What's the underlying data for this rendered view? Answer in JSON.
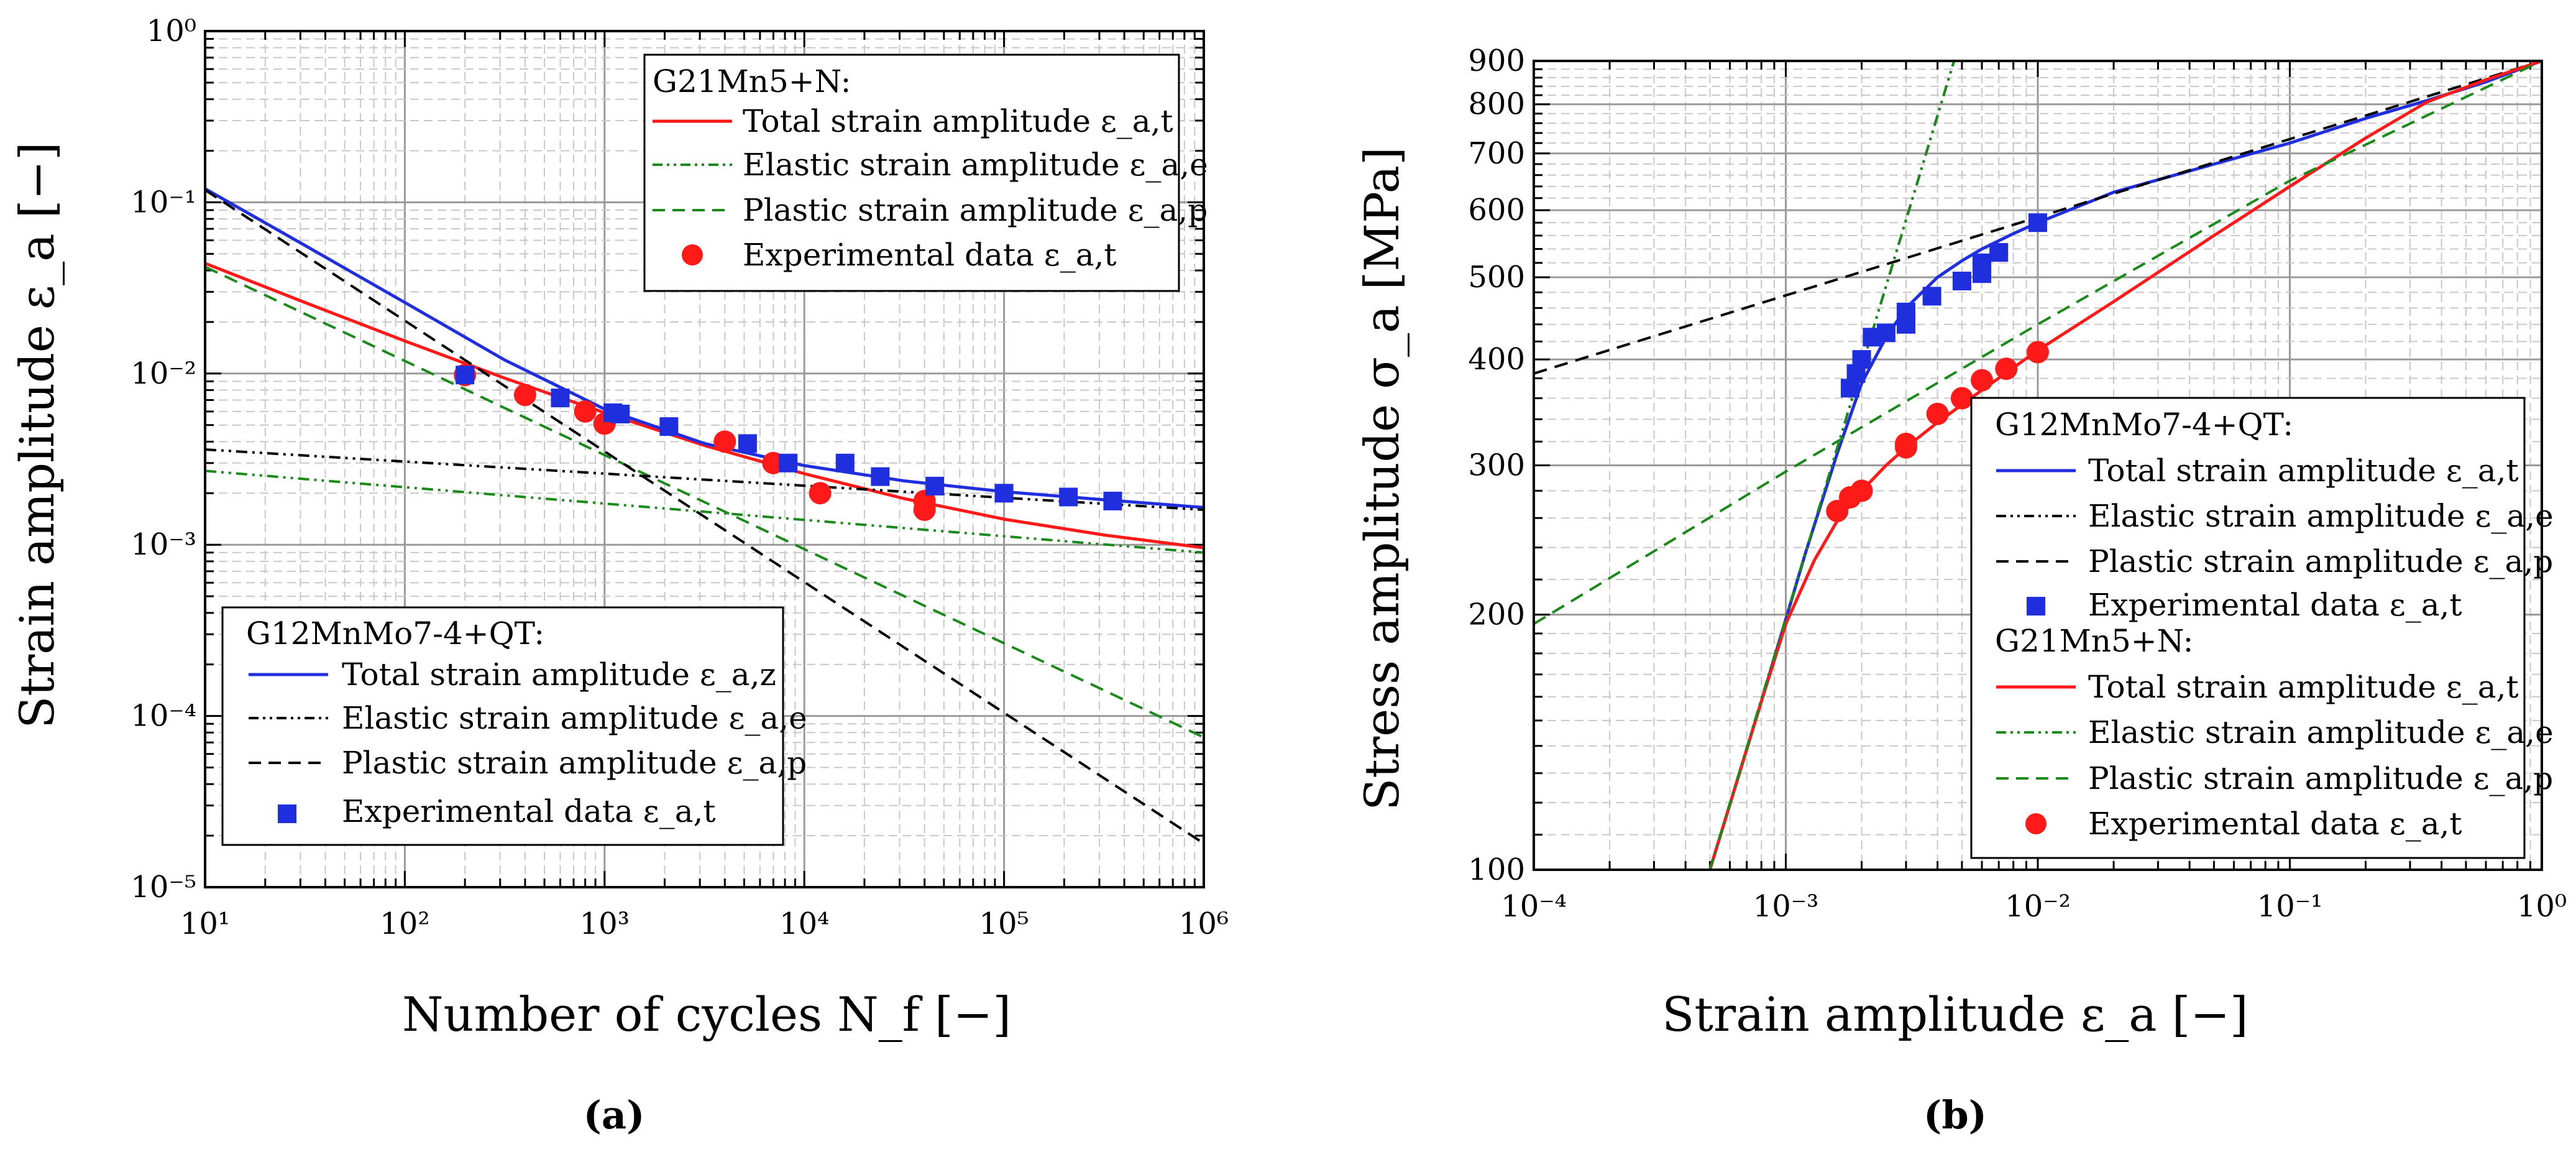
{
  "colors": {
    "red": "#ff1a1a",
    "blue": "#1f2fdd",
    "green": "#1a8a1a",
    "black": "#000000",
    "grid_major": "#9a9a9a",
    "grid_minor": "#c8c8c8"
  },
  "chart_data": [
    {
      "id": "a",
      "type": "line",
      "panel_label": "(a)",
      "xlabel": "Number of cycles N_f [−]",
      "ylabel": "Strain amplitude ε_a [−]",
      "xscale": "log",
      "yscale": "log",
      "xlim": [
        10,
        1000000
      ],
      "ylim": [
        1e-05,
        1
      ],
      "xticks": [
        {
          "value": 10,
          "label": "10¹"
        },
        {
          "value": 100,
          "label": "10²"
        },
        {
          "value": 1000,
          "label": "10³"
        },
        {
          "value": 10000,
          "label": "10⁴"
        },
        {
          "value": 100000,
          "label": "10⁵"
        },
        {
          "value": 1000000,
          "label": "10⁶"
        }
      ],
      "yticks": [
        {
          "value": 1e-05,
          "label": "10⁻⁵"
        },
        {
          "value": 0.0001,
          "label": "10⁻⁴"
        },
        {
          "value": 0.001,
          "label": "10⁻³"
        },
        {
          "value": 0.01,
          "label": "10⁻²"
        },
        {
          "value": 0.1,
          "label": "10⁻¹"
        },
        {
          "value": 1,
          "label": "10⁰"
        }
      ],
      "grid": true,
      "legends": [
        {
          "placement": "top-right",
          "title": "G21Mn5+N:",
          "entries": [
            {
              "label": "Total strain amplitude ε_a,t",
              "color": "#ff1a1a",
              "style": "solid"
            },
            {
              "label": "Elastic strain amplitude ε_a,e",
              "color": "#1a8a1a",
              "style": "dashdot"
            },
            {
              "label": "Plastic strain amplitude ε_a,p",
              "color": "#1a8a1a",
              "style": "dashed"
            },
            {
              "label": "Experimental data ε_a,t",
              "color": "#ff1a1a",
              "style": "circle"
            }
          ]
        },
        {
          "placement": "bottom-left",
          "title": "G12MnMo7-4+QT:",
          "entries": [
            {
              "label": "Total strain amplitude ε_a,z",
              "color": "#1f2fdd",
              "style": "solid"
            },
            {
              "label": "Elastic strain amplitude ε_a,e",
              "color": "#000000",
              "style": "dashdot"
            },
            {
              "label": "Plastic strain amplitude ε_a,p",
              "color": "#000000",
              "style": "dashed"
            },
            {
              "label": "Experimental data ε_a,t",
              "color": "#1f2fdd",
              "style": "square"
            }
          ]
        }
      ],
      "series": [
        {
          "material": "G21Mn5+N",
          "kind": "total",
          "color": "#ff1a1a",
          "style": "solid",
          "x": [
            10,
            31.6,
            100,
            316,
            1000,
            3162,
            10000,
            31623,
            100000,
            316228,
            1000000
          ],
          "values": [
            0.044,
            0.026,
            0.0155,
            0.0094,
            0.0059,
            0.0038,
            0.0026,
            0.00186,
            0.00141,
            0.00114,
            0.00096
          ]
        },
        {
          "material": "G21Mn5+N",
          "kind": "elastic",
          "color": "#1a8a1a",
          "style": "dashdot",
          "x": [
            10,
            1000000
          ],
          "values": [
            0.0027,
            0.0009
          ]
        },
        {
          "material": "G21Mn5+N",
          "kind": "plastic",
          "color": "#1a8a1a",
          "style": "dashed",
          "x": [
            10,
            1000000
          ],
          "values": [
            0.042,
            7.5e-05
          ]
        },
        {
          "material": "G21Mn5+N",
          "kind": "experimental",
          "color": "#ff1a1a",
          "style": "circle",
          "x": [
            200,
            400,
            800,
            1000,
            4000,
            7000,
            12000,
            40000,
            40000
          ],
          "values": [
            0.0098,
            0.0075,
            0.006,
            0.0051,
            0.004,
            0.003,
            0.002,
            0.0018,
            0.0016
          ]
        },
        {
          "material": "G12MnMo7-4+QT",
          "kind": "total",
          "color": "#1f2fdd",
          "style": "solid",
          "x": [
            10,
            31.6,
            100,
            316,
            1000,
            3162,
            10000,
            31623,
            100000,
            316228,
            1000000
          ],
          "values": [
            0.12,
            0.056,
            0.026,
            0.012,
            0.0062,
            0.0039,
            0.0029,
            0.00236,
            0.00204,
            0.00183,
            0.00165
          ]
        },
        {
          "material": "G12MnMo7-4+QT",
          "kind": "elastic",
          "color": "#000000",
          "style": "dashdot",
          "x": [
            10,
            1000000
          ],
          "values": [
            0.0036,
            0.0016
          ]
        },
        {
          "material": "G12MnMo7-4+QT",
          "kind": "plastic",
          "color": "#000000",
          "style": "dashed",
          "x": [
            10,
            1000000
          ],
          "values": [
            0.118,
            1.8e-05
          ]
        },
        {
          "material": "G12MnMo7-4+QT",
          "kind": "experimental",
          "color": "#1f2fdd",
          "style": "square",
          "x": [
            200,
            600,
            1100,
            1200,
            2100,
            5200,
            8300,
            16000,
            24000,
            45000,
            100000,
            210000,
            350000
          ],
          "values": [
            0.0098,
            0.0072,
            0.0059,
            0.0058,
            0.0049,
            0.0039,
            0.003,
            0.003,
            0.0025,
            0.0022,
            0.002,
            0.0019,
            0.0018
          ]
        }
      ]
    },
    {
      "id": "b",
      "type": "line",
      "panel_label": "(b)",
      "xlabel": "Strain amplitude ε_a [−]",
      "ylabel": "Stress amplitude σ_a [MPa]",
      "xscale": "log",
      "yscale": "log",
      "xlim": [
        0.0001,
        1
      ],
      "ylim": [
        100,
        900
      ],
      "xticks": [
        {
          "value": 0.0001,
          "label": "10⁻⁴"
        },
        {
          "value": 0.001,
          "label": "10⁻³"
        },
        {
          "value": 0.01,
          "label": "10⁻²"
        },
        {
          "value": 0.1,
          "label": "10⁻¹"
        },
        {
          "value": 1,
          "label": "10⁰"
        }
      ],
      "yticks": [
        {
          "value": 100,
          "label": "100"
        },
        {
          "value": 200,
          "label": "200"
        },
        {
          "value": 300,
          "label": "300"
        },
        {
          "value": 400,
          "label": "400"
        },
        {
          "value": 500,
          "label": "500"
        },
        {
          "value": 600,
          "label": "600"
        },
        {
          "value": 700,
          "label": "700"
        },
        {
          "value": 800,
          "label": "800"
        },
        {
          "value": 900,
          "label": "900"
        }
      ],
      "grid": true,
      "legends": [
        {
          "placement": "right",
          "title": "G12MnMo7-4+QT:",
          "entries": [
            {
              "label": "Total strain amplitude ε_a,t",
              "color": "#1f2fdd",
              "style": "solid"
            },
            {
              "label": "Elastic strain amplitude ε_a,e",
              "color": "#000000",
              "style": "dashdot"
            },
            {
              "label": "Plastic strain amplitude ε_a,p",
              "color": "#000000",
              "style": "dashed"
            },
            {
              "label": "Experimental data ε_a,t",
              "color": "#1f2fdd",
              "style": "square"
            }
          ],
          "title2": "G21Mn5+N:",
          "entries2": [
            {
              "label": "Total strain amplitude ε_a,t",
              "color": "#ff1a1a",
              "style": "solid"
            },
            {
              "label": "Elastic strain amplitude ε_a,e",
              "color": "#1a8a1a",
              "style": "dashdot"
            },
            {
              "label": "Plastic strain amplitude ε_a,p",
              "color": "#1a8a1a",
              "style": "dashed"
            },
            {
              "label": "Experimental data ε_a,t",
              "color": "#ff1a1a",
              "style": "circle"
            }
          ]
        }
      ],
      "series": [
        {
          "material": "G12MnMo7-4+QT",
          "kind": "total",
          "color": "#1f2fdd",
          "style": "solid",
          "x": [
            0.0005,
            0.0008,
            0.0012,
            0.0016,
            0.002,
            0.0025,
            0.003,
            0.004,
            0.005,
            0.006,
            0.008,
            0.01,
            0.02,
            0.05,
            0.1,
            0.2,
            0.35,
            0.6,
            1.0
          ],
          "values": [
            100,
            158,
            237,
            310,
            375,
            425,
            460,
            500,
            523,
            540,
            563,
            580,
            630,
            680,
            720,
            770,
            808,
            850,
            900
          ]
        },
        {
          "material": "G12MnMo7-4+QT",
          "kind": "elastic",
          "color": "#000000",
          "style": "dashdot",
          "x": [
            0.0005,
            0.00465
          ],
          "values": [
            100,
            900
          ]
        },
        {
          "material": "G12MnMo7-4+QT",
          "kind": "plastic",
          "color": "#000000",
          "style": "dashed",
          "x": [
            0.0001,
            1.0
          ],
          "values": [
            385,
            900
          ]
        },
        {
          "material": "G12MnMo7-4+QT",
          "kind": "experimental",
          "color": "#1f2fdd",
          "style": "square",
          "x": [
            0.0018,
            0.0019,
            0.002,
            0.0022,
            0.0025,
            0.003,
            0.003,
            0.0038,
            0.005,
            0.006,
            0.006,
            0.007,
            0.01
          ],
          "values": [
            370,
            385,
            400,
            425,
            430,
            440,
            455,
            475,
            495,
            505,
            520,
            535,
            580
          ]
        },
        {
          "material": "G21Mn5+N",
          "kind": "total",
          "color": "#ff1a1a",
          "style": "solid",
          "x": [
            0.0005,
            0.0008,
            0.001,
            0.0013,
            0.0016,
            0.002,
            0.0025,
            0.003,
            0.004,
            0.006,
            0.01,
            0.02,
            0.05,
            0.1,
            0.2,
            0.35,
            0.6,
            1.0
          ],
          "values": [
            100,
            158,
            195,
            232,
            258,
            280,
            300,
            315,
            337,
            368,
            410,
            468,
            560,
            640,
            730,
            805,
            855,
            900
          ]
        },
        {
          "material": "G21Mn5+N",
          "kind": "elastic",
          "color": "#1a8a1a",
          "style": "dashdot",
          "x": [
            0.0005,
            0.00465
          ],
          "values": [
            100,
            900
          ]
        },
        {
          "material": "G21Mn5+N",
          "kind": "plastic",
          "color": "#1a8a1a",
          "style": "dashed",
          "x": [
            0.0001,
            0.001,
            0.01,
            0.1,
            1.0
          ],
          "values": [
            195,
            295,
            440,
            650,
            900
          ]
        },
        {
          "material": "G21Mn5+N",
          "kind": "experimental",
          "color": "#ff1a1a",
          "style": "circle",
          "x": [
            0.0016,
            0.0018,
            0.002,
            0.003,
            0.003,
            0.004,
            0.005,
            0.006,
            0.0075,
            0.01
          ],
          "values": [
            265,
            275,
            280,
            315,
            318,
            345,
            360,
            378,
            390,
            408
          ]
        }
      ]
    }
  ]
}
